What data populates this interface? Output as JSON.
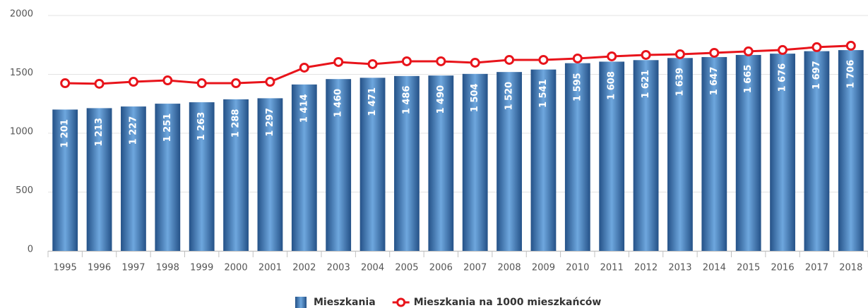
{
  "chart_data": {
    "type": "bar",
    "categories": [
      "1995",
      "1996",
      "1997",
      "1998",
      "1999",
      "2000",
      "2001",
      "2002",
      "2003",
      "2004",
      "2005",
      "2006",
      "2007",
      "2008",
      "2009",
      "2010",
      "2011",
      "2012",
      "2013",
      "2014",
      "2015",
      "2016",
      "2017",
      "2018"
    ],
    "series": [
      {
        "name": "Mieszkania",
        "type": "bar",
        "color": "#3a75b8",
        "values": [
          1201,
          1213,
          1227,
          1251,
          1263,
          1288,
          1297,
          1414,
          1460,
          1471,
          1486,
          1490,
          1504,
          1520,
          1541,
          1595,
          1608,
          1621,
          1639,
          1647,
          1665,
          1676,
          1697,
          1706
        ],
        "value_labels": [
          "1 201",
          "1 213",
          "1 227",
          "1 251",
          "1 263",
          "1 288",
          "1 297",
          "1 414",
          "1 460",
          "1 471",
          "1 486",
          "1 490",
          "1 504",
          "1 520",
          "1 541",
          "1 595",
          "1 608",
          "1 621",
          "1 639",
          "1 647",
          "1 665",
          "1 676",
          "1 697",
          "1 706"
        ]
      },
      {
        "name": "Mieszkania na 1000 mieszkańców",
        "type": "line",
        "color": "#e8141b",
        "values": [
          1425,
          1420,
          1437,
          1449,
          1425,
          1425,
          1437,
          1557,
          1605,
          1587,
          1611,
          1611,
          1599,
          1623,
          1623,
          1635,
          1653,
          1665,
          1671,
          1683,
          1695,
          1707,
          1731,
          1743
        ]
      }
    ],
    "ylim": [
      0,
      2000
    ],
    "yticks": [
      0,
      500,
      1000,
      1500,
      2000
    ],
    "grid": true
  }
}
